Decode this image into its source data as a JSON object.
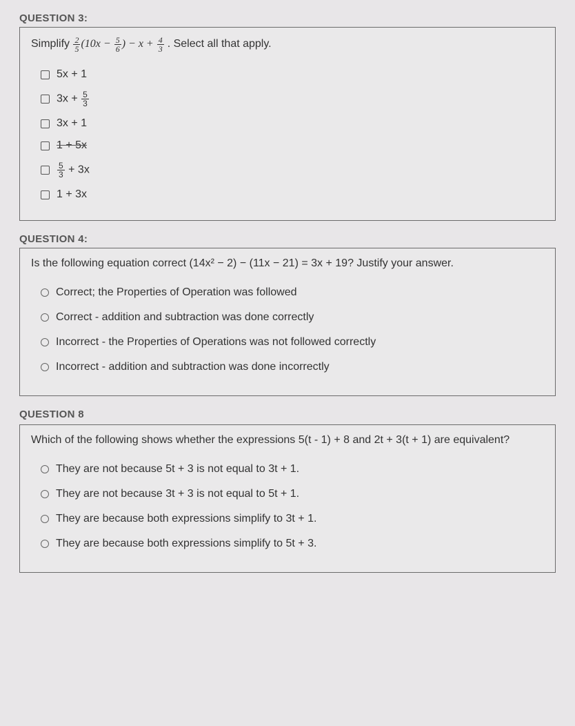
{
  "q3": {
    "label": "QUESTION 3:",
    "prompt_prefix": "Simplify ",
    "prompt_suffix": " . Select all that apply.",
    "options": [
      {
        "text": "5x + 1",
        "strike": false
      },
      {
        "text": "3x + ",
        "frac_n": "5",
        "frac_d": "3",
        "strike": false
      },
      {
        "text": "3x + 1",
        "strike": false
      },
      {
        "text": "1 + 5x",
        "strike": true
      },
      {
        "prefix_frac_n": "5",
        "prefix_frac_d": "3",
        "text": " + 3x",
        "strike": false
      },
      {
        "text": "1 + 3x",
        "strike": false
      }
    ]
  },
  "q4": {
    "label": "QUESTION 4:",
    "prompt": "Is the following equation correct (14x² − 2) − (11x − 21) = 3x + 19? Justify your answer.",
    "options": [
      "Correct; the Properties of Operation was followed",
      "Correct - addition and subtraction was done correctly",
      "Incorrect - the Properties of Operations was not followed correctly",
      "Incorrect - addition and subtraction was done incorrectly"
    ]
  },
  "q8": {
    "label": "QUESTION 8",
    "prompt": "Which of the following shows whether the expressions 5(t - 1) + 8 and 2t + 3(t + 1) are equivalent?",
    "options": [
      "They are not because 5t + 3 is not equal to 3t + 1.",
      "They are not because 3t + 3 is not equal to 5t + 1.",
      "They are because both expressions simplify to 3t + 1.",
      "They are because both expressions simplify to 5t + 3."
    ]
  }
}
